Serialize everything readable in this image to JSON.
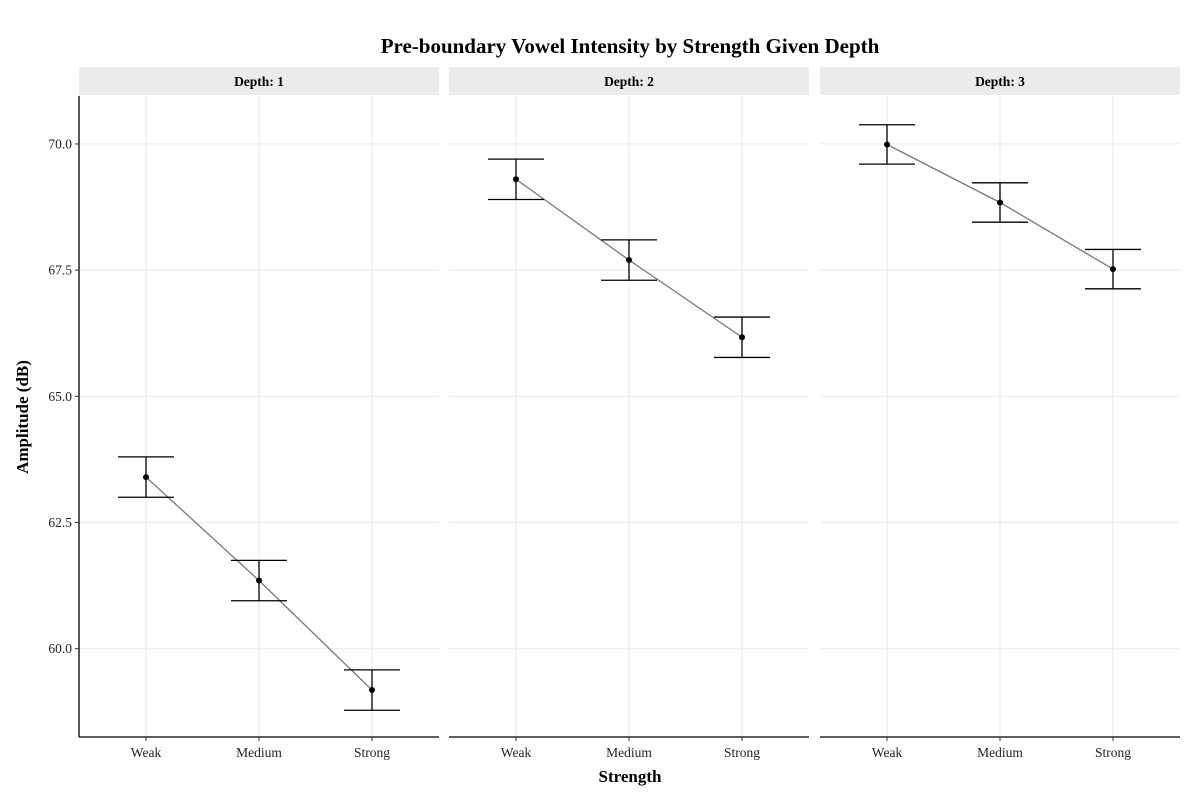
{
  "chart_data": {
    "type": "line",
    "title": "Pre-boundary Vowel Intensity by Strength Given Depth",
    "xlabel": "Strength",
    "ylabel": "Amplitude (dB)",
    "categories": [
      "Weak",
      "Medium",
      "Strong"
    ],
    "y_ticks": [
      "60.0",
      "62.5",
      "65.0",
      "67.5",
      "70.0"
    ],
    "ylim": [
      58.25,
      70.95
    ],
    "grid": true,
    "error_bars": true,
    "colors": {
      "line": "#777777",
      "point": "#000000",
      "errorbar": "#000000",
      "strip": "#ebebeb",
      "grid": "#ebebeb"
    },
    "panels": [
      {
        "label": "Depth: 1",
        "values": [
          63.4,
          61.35,
          59.18
        ],
        "lower": [
          63.0,
          60.95,
          58.78
        ],
        "upper": [
          63.8,
          61.75,
          59.58
        ]
      },
      {
        "label": "Depth: 2",
        "values": [
          69.3,
          67.7,
          66.17
        ],
        "lower": [
          68.9,
          67.3,
          65.77
        ],
        "upper": [
          69.7,
          68.1,
          66.57
        ]
      },
      {
        "label": "Depth: 3",
        "values": [
          69.99,
          68.84,
          67.52
        ],
        "lower": [
          69.6,
          68.45,
          67.13
        ],
        "upper": [
          70.38,
          69.23,
          67.91
        ]
      }
    ]
  }
}
